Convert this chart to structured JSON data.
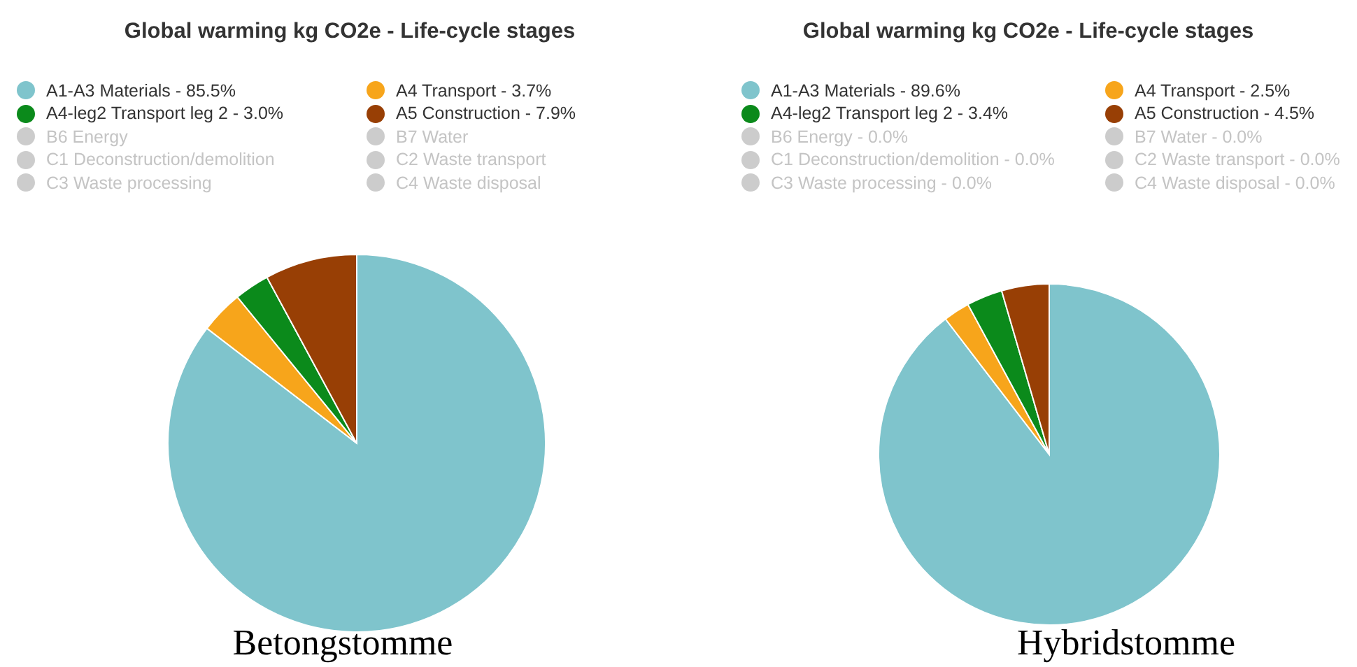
{
  "chart_data": [
    {
      "type": "pie",
      "title": "Global warming kg CO2e - Life-cycle stages",
      "categories": [
        "A1-A3 Materials - 85.5%",
        "A4 Transport - 3.7%",
        "A4-leg2 Transport leg 2 - 3.0%",
        "A5 Construction - 7.9%",
        "B6 Energy",
        "B7 Water",
        "C1 Deconstruction/demolition",
        "C2 Waste transport",
        "C3 Waste processing",
        "C4 Waste disposal"
      ],
      "values": [
        85.5,
        3.7,
        3.0,
        7.9,
        null,
        null,
        null,
        null,
        null,
        null
      ],
      "colors": [
        "#7fc4cc",
        "#f7a51b",
        "#0b8a1b",
        "#983f05",
        "#cccccc",
        "#cccccc",
        "#cccccc",
        "#cccccc",
        "#cccccc",
        "#cccccc"
      ],
      "legend": "top",
      "annotations": [
        "Betongstomme"
      ]
    },
    {
      "type": "pie",
      "title": "Global warming kg CO2e - Life-cycle stages",
      "categories": [
        "A1-A3 Materials - 89.6%",
        "A4 Transport - 2.5%",
        "A4-leg2 Transport leg 2 - 3.4%",
        "A5 Construction - 4.5%",
        "B6 Energy - 0.0%",
        "B7 Water - 0.0%",
        "C1 Deconstruction/demolition - 0.0%",
        "C2 Waste transport - 0.0%",
        "C3 Waste processing - 0.0%",
        "C4 Waste disposal - 0.0%"
      ],
      "values": [
        89.6,
        2.5,
        3.4,
        4.5,
        0,
        0,
        0,
        0,
        0,
        0
      ],
      "colors": [
        "#7fc4cc",
        "#f7a51b",
        "#0b8a1b",
        "#983f05",
        "#cccccc",
        "#cccccc",
        "#cccccc",
        "#cccccc",
        "#cccccc",
        "#cccccc"
      ],
      "legend": "top",
      "annotations": [
        "Hybridstomme"
      ]
    }
  ]
}
